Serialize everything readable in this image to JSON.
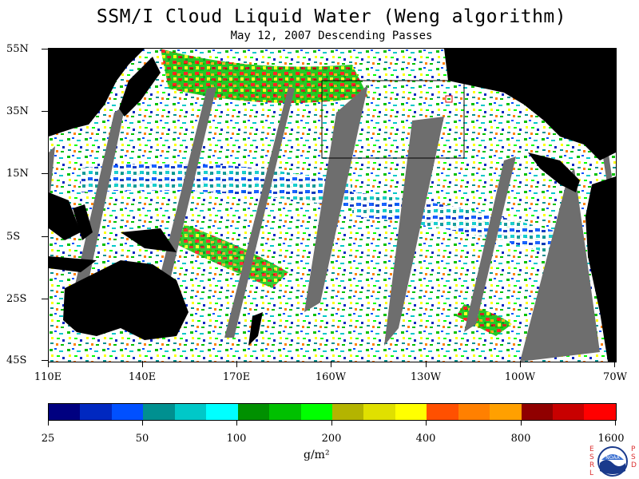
{
  "title": "SSM/I Cloud Liquid Water (Weng algorithm)",
  "subtitle": "May 12, 2007  Descending Passes",
  "lat_labels": [
    "55N",
    "35N",
    "15N",
    "5S",
    "25S",
    "45S"
  ],
  "lon_labels": [
    "110E",
    "140E",
    "170E",
    "160W",
    "130W",
    "100W",
    "70W"
  ],
  "colorbar": {
    "labels": [
      "25",
      "50",
      "100",
      "200",
      "400",
      "800",
      "1600"
    ],
    "units": "g/m²",
    "colors": [
      "#000080",
      "#0028c0",
      "#0050ff",
      "#009090",
      "#00c8c8",
      "#00ffff",
      "#009000",
      "#00c000",
      "#00ff00",
      "#b4b400",
      "#e0e000",
      "#ffff00",
      "#ff5000",
      "#ff8000",
      "#ffa000",
      "#900000",
      "#c80000",
      "#ff0000"
    ]
  },
  "logo": {
    "left_text": "ESRL",
    "right_text": "PSD",
    "emblem": "NOAA"
  },
  "colors": {
    "land": "#000000",
    "missing": "#6e6e6e",
    "clear": "#ffffff"
  }
}
